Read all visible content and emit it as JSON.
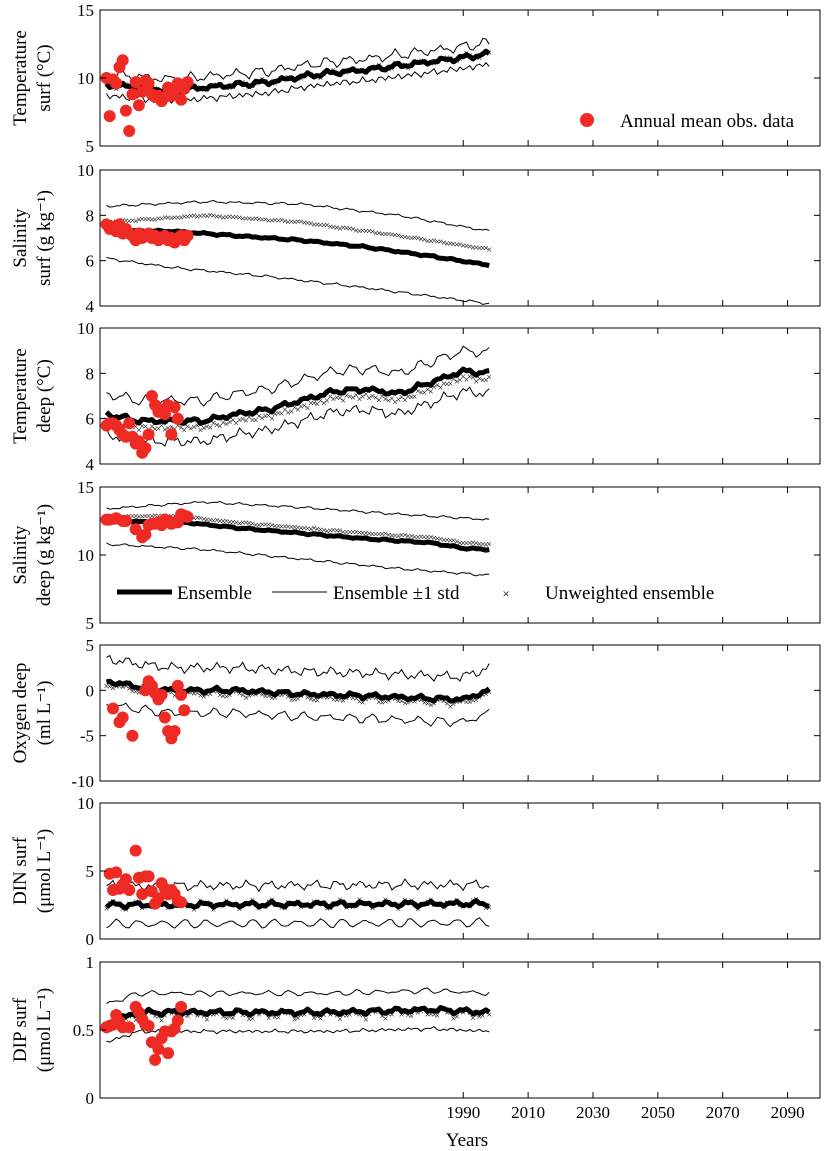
{
  "chart_data": {
    "type": "line",
    "xlabel": "Years",
    "xlim": [
      1878,
      2100
    ],
    "xticks": [
      1990,
      2010,
      2030,
      2050,
      2070,
      2090
    ],
    "legend_top": {
      "obs": "Annual mean obs. data"
    },
    "legend_main": {
      "ensemble": "Ensemble",
      "std": "Ensemble ±1 std",
      "unweighted": "Unweighted ensemble"
    },
    "obs_color": "#ee2a24",
    "panels": [
      {
        "id": "temp-surf",
        "ylabel": [
          "Temperature",
          "surf (°C)"
        ],
        "ylim": [
          5,
          15
        ],
        "yticks": [
          "5",
          "10",
          "15"
        ],
        "ytick_values": [
          5,
          10,
          15
        ],
        "ensemble_nodes": [
          [
            1880,
            9.5
          ],
          [
            1890,
            9.3
          ],
          [
            1900,
            9.1
          ],
          [
            1910,
            9.3
          ],
          [
            1920,
            9.5
          ],
          [
            1930,
            9.7
          ],
          [
            1940,
            10.1
          ],
          [
            1950,
            10.4
          ],
          [
            1960,
            10.6
          ],
          [
            1970,
            10.9
          ],
          [
            1980,
            11.2
          ],
          [
            1990,
            11.5
          ],
          [
            1998,
            11.8
          ]
        ],
        "std": 0.8,
        "unweighted_offset": 0.0,
        "noise": 0.25,
        "obs": [
          [
            1880,
            10.0
          ],
          [
            1881,
            7.2
          ],
          [
            1882,
            9.9
          ],
          [
            1883,
            9.6
          ],
          [
            1884,
            10.8
          ],
          [
            1885,
            11.3
          ],
          [
            1886,
            7.6
          ],
          [
            1887,
            6.1
          ],
          [
            1888,
            8.8
          ],
          [
            1889,
            9.7
          ],
          [
            1890,
            8.0
          ],
          [
            1891,
            9.0
          ],
          [
            1892,
            9.8
          ],
          [
            1893,
            9.6
          ],
          [
            1894,
            8.8
          ],
          [
            1895,
            8.6
          ],
          [
            1896,
            8.7
          ],
          [
            1897,
            8.3
          ],
          [
            1898,
            8.6
          ],
          [
            1899,
            9.3
          ],
          [
            1900,
            8.7
          ],
          [
            1901,
            9.1
          ],
          [
            1902,
            9.6
          ],
          [
            1903,
            8.4
          ],
          [
            1904,
            9.2
          ],
          [
            1905,
            9.7
          ]
        ]
      },
      {
        "id": "sal-surf",
        "ylabel": [
          "Salinity",
          "surf (g kg⁻¹)"
        ],
        "ylim": [
          4,
          10
        ],
        "yticks": [
          "4",
          "6",
          "8",
          "10"
        ],
        "ytick_values": [
          4,
          6,
          8,
          10
        ],
        "ensemble_nodes": [
          [
            1880,
            7.3
          ],
          [
            1900,
            7.3
          ],
          [
            1920,
            7.1
          ],
          [
            1940,
            6.9
          ],
          [
            1960,
            6.6
          ],
          [
            1980,
            6.2
          ],
          [
            1998,
            5.8
          ]
        ],
        "std": 1.2,
        "std_upper_nodes": [
          [
            1880,
            8.4
          ],
          [
            1910,
            8.6
          ],
          [
            1940,
            8.5
          ],
          [
            1970,
            8.0
          ],
          [
            1998,
            7.3
          ]
        ],
        "std_lower_nodes": [
          [
            1880,
            6.1
          ],
          [
            1900,
            5.7
          ],
          [
            1930,
            5.3
          ],
          [
            1960,
            4.8
          ],
          [
            1998,
            4.1
          ]
        ],
        "unweighted_nodes": [
          [
            1880,
            7.7
          ],
          [
            1910,
            8.0
          ],
          [
            1940,
            7.7
          ],
          [
            1970,
            7.1
          ],
          [
            1998,
            6.5
          ]
        ],
        "noise": 0.05,
        "obs": [
          [
            1880,
            7.6
          ],
          [
            1881,
            7.4
          ],
          [
            1882,
            7.5
          ],
          [
            1883,
            7.3
          ],
          [
            1884,
            7.6
          ],
          [
            1885,
            7.2
          ],
          [
            1886,
            7.4
          ],
          [
            1887,
            7.2
          ],
          [
            1888,
            7.1
          ],
          [
            1889,
            6.9
          ],
          [
            1890,
            7.2
          ],
          [
            1891,
            7.0
          ],
          [
            1892,
            7.1
          ],
          [
            1893,
            7.2
          ],
          [
            1894,
            7.0
          ],
          [
            1895,
            7.1
          ],
          [
            1896,
            6.9
          ],
          [
            1897,
            7.0
          ],
          [
            1898,
            7.1
          ],
          [
            1899,
            6.9
          ],
          [
            1900,
            7.0
          ],
          [
            1901,
            6.8
          ],
          [
            1902,
            7.0
          ],
          [
            1903,
            7.1
          ],
          [
            1904,
            6.9
          ],
          [
            1905,
            7.1
          ]
        ]
      },
      {
        "id": "temp-deep",
        "ylabel": [
          "Temperature",
          "deep (°C)"
        ],
        "ylim": [
          4,
          10
        ],
        "yticks": [
          "4",
          "6",
          "8",
          "10"
        ],
        "ytick_values": [
          4,
          6,
          8,
          10
        ],
        "ensemble_nodes": [
          [
            1880,
            6.2
          ],
          [
            1890,
            5.9
          ],
          [
            1900,
            5.9
          ],
          [
            1910,
            5.9
          ],
          [
            1920,
            6.2
          ],
          [
            1930,
            6.4
          ],
          [
            1940,
            6.8
          ],
          [
            1950,
            7.2
          ],
          [
            1960,
            7.3
          ],
          [
            1970,
            7.1
          ],
          [
            1980,
            7.6
          ],
          [
            1990,
            8.1
          ],
          [
            1998,
            8.0
          ]
        ],
        "std": 0.9,
        "unweighted_offset": -0.3,
        "noise": 0.15,
        "obs": [
          [
            1880,
            5.7
          ],
          [
            1881,
            5.8
          ],
          [
            1882,
            5.8
          ],
          [
            1883,
            5.7
          ],
          [
            1884,
            5.5
          ],
          [
            1885,
            5.3
          ],
          [
            1886,
            5.2
          ],
          [
            1887,
            5.8
          ],
          [
            1888,
            5.2
          ],
          [
            1889,
            4.9
          ],
          [
            1890,
            5.0
          ],
          [
            1891,
            4.5
          ],
          [
            1892,
            4.7
          ],
          [
            1893,
            5.3
          ],
          [
            1894,
            7.0
          ],
          [
            1895,
            6.6
          ],
          [
            1896,
            6.3
          ],
          [
            1897,
            6.4
          ],
          [
            1898,
            6.2
          ],
          [
            1899,
            6.6
          ],
          [
            1900,
            5.3
          ],
          [
            1901,
            6.5
          ],
          [
            1902,
            6.0
          ]
        ]
      },
      {
        "id": "sal-deep",
        "ylabel": [
          "Salinity",
          "deep (g kg⁻¹)"
        ],
        "ylim": [
          5,
          15
        ],
        "yticks": [
          "5",
          "10",
          "15"
        ],
        "ytick_values": [
          5,
          10,
          15
        ],
        "ensemble_nodes": [
          [
            1880,
            12.4
          ],
          [
            1900,
            12.5
          ],
          [
            1920,
            12.0
          ],
          [
            1940,
            11.6
          ],
          [
            1960,
            11.2
          ],
          [
            1980,
            10.9
          ],
          [
            1990,
            10.5
          ],
          [
            1998,
            10.4
          ]
        ],
        "std": 1.8,
        "std_upper_nodes": [
          [
            1880,
            13.4
          ],
          [
            1910,
            13.9
          ],
          [
            1940,
            13.5
          ],
          [
            1970,
            13.0
          ],
          [
            1998,
            12.6
          ]
        ],
        "std_lower_nodes": [
          [
            1880,
            10.8
          ],
          [
            1910,
            10.4
          ],
          [
            1940,
            9.7
          ],
          [
            1970,
            9.0
          ],
          [
            1998,
            8.5
          ]
        ],
        "unweighted_offset": 0.4,
        "noise": 0.08,
        "obs": [
          [
            1880,
            12.6
          ],
          [
            1881,
            12.6
          ],
          [
            1883,
            12.7
          ],
          [
            1885,
            12.5
          ],
          [
            1886,
            12.5
          ],
          [
            1889,
            11.9
          ],
          [
            1891,
            11.3
          ],
          [
            1892,
            11.5
          ],
          [
            1893,
            12.2
          ],
          [
            1894,
            12.3
          ],
          [
            1895,
            12.3
          ],
          [
            1896,
            12.4
          ],
          [
            1897,
            12.2
          ],
          [
            1898,
            12.6
          ],
          [
            1899,
            12.5
          ],
          [
            1900,
            12.3
          ],
          [
            1901,
            12.4
          ],
          [
            1902,
            12.4
          ],
          [
            1903,
            13.0
          ],
          [
            1904,
            12.9
          ],
          [
            1905,
            12.8
          ]
        ]
      },
      {
        "id": "oxy-deep",
        "ylabel": [
          "Oxygen deep",
          "(ml L⁻¹)"
        ],
        "ylim": [
          -10,
          5
        ],
        "yticks": [
          "-10",
          "-5",
          "0",
          "5"
        ],
        "ytick_values": [
          -10,
          -5,
          0,
          5
        ],
        "ensemble_nodes": [
          [
            1880,
            1.0
          ],
          [
            1890,
            0.4
          ],
          [
            1900,
            0.0
          ],
          [
            1920,
            0.0
          ],
          [
            1940,
            -0.4
          ],
          [
            1960,
            -0.6
          ],
          [
            1980,
            -0.9
          ],
          [
            1990,
            -1.0
          ],
          [
            1998,
            0.0
          ]
        ],
        "std": 2.5,
        "unweighted_offset": -0.4,
        "noise": 0.35,
        "obs": [
          [
            1882,
            -2.0
          ],
          [
            1884,
            -3.5
          ],
          [
            1885,
            -3.0
          ],
          [
            1888,
            -5.0
          ],
          [
            1892,
            0.0
          ],
          [
            1893,
            1.0
          ],
          [
            1894,
            0.5
          ],
          [
            1895,
            -0.3
          ],
          [
            1896,
            -1.0
          ],
          [
            1897,
            -0.5
          ],
          [
            1898,
            -3.0
          ],
          [
            1899,
            -4.5
          ],
          [
            1900,
            -5.3
          ],
          [
            1901,
            -4.5
          ],
          [
            1902,
            0.5
          ],
          [
            1903,
            -0.5
          ],
          [
            1904,
            -2.2
          ]
        ]
      },
      {
        "id": "din-surf",
        "ylabel": [
          "DIN surf",
          "(μmol L⁻¹)"
        ],
        "ylim": [
          0,
          10
        ],
        "yticks": [
          "0",
          "5",
          "10"
        ],
        "ytick_values": [
          0,
          5,
          10
        ],
        "ensemble_nodes": [
          [
            1880,
            2.5
          ],
          [
            1998,
            2.6
          ]
        ],
        "std": 1.4,
        "unweighted_offset": 0.0,
        "noise": 0.25,
        "obs": [
          [
            1881,
            4.8
          ],
          [
            1882,
            3.6
          ],
          [
            1883,
            4.9
          ],
          [
            1884,
            3.7
          ],
          [
            1885,
            4.0
          ],
          [
            1886,
            4.4
          ],
          [
            1887,
            3.6
          ],
          [
            1889,
            6.5
          ],
          [
            1890,
            4.5
          ],
          [
            1891,
            3.3
          ],
          [
            1892,
            4.6
          ],
          [
            1893,
            4.6
          ],
          [
            1894,
            3.5
          ],
          [
            1895,
            2.6
          ],
          [
            1896,
            3.0
          ],
          [
            1897,
            4.1
          ],
          [
            1898,
            3.7
          ],
          [
            1899,
            3.3
          ],
          [
            1900,
            3.6
          ],
          [
            1901,
            3.3
          ],
          [
            1902,
            2.8
          ],
          [
            1903,
            2.7
          ]
        ]
      },
      {
        "id": "dip-surf",
        "ylabel": [
          "DIP surf",
          "(μmol L⁻¹)"
        ],
        "ylim": [
          0,
          1
        ],
        "yticks": [
          "0",
          "0.5",
          "1"
        ],
        "ytick_values": [
          0,
          0.5,
          1
        ],
        "ensemble_nodes": [
          [
            1880,
            0.55
          ],
          [
            1890,
            0.63
          ],
          [
            1920,
            0.63
          ],
          [
            1950,
            0.63
          ],
          [
            1980,
            0.65
          ],
          [
            1998,
            0.63
          ]
        ],
        "std": 0.14,
        "unweighted_offset": -0.02,
        "noise": 0.025,
        "obs": [
          [
            1880,
            0.52
          ],
          [
            1881,
            0.53
          ],
          [
            1882,
            0.54
          ],
          [
            1883,
            0.61
          ],
          [
            1884,
            0.56
          ],
          [
            1885,
            0.52
          ],
          [
            1887,
            0.52
          ],
          [
            1889,
            0.67
          ],
          [
            1890,
            0.63
          ],
          [
            1891,
            0.58
          ],
          [
            1892,
            0.54
          ],
          [
            1893,
            0.53
          ],
          [
            1894,
            0.41
          ],
          [
            1895,
            0.28
          ],
          [
            1896,
            0.36
          ],
          [
            1897,
            0.44
          ],
          [
            1898,
            0.49
          ],
          [
            1899,
            0.33
          ],
          [
            1900,
            0.49
          ],
          [
            1901,
            0.51
          ],
          [
            1902,
            0.57
          ],
          [
            1903,
            0.67
          ]
        ]
      }
    ]
  }
}
